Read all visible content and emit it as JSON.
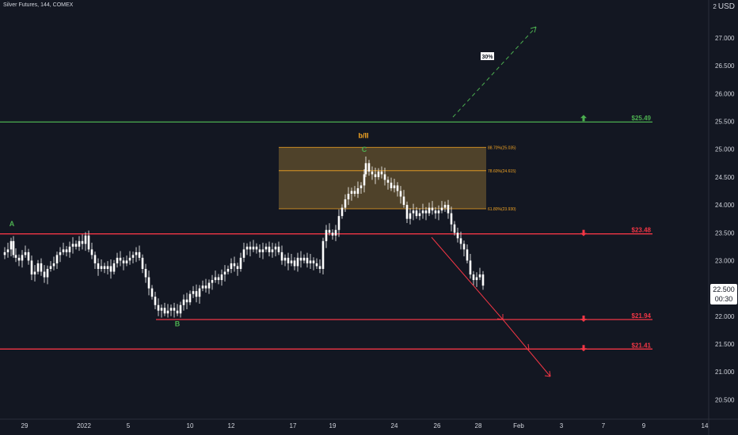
{
  "chart_title": "Silver Futures, 144, COMEX",
  "currency": "USD",
  "currency_count": "2",
  "last_price": "22.500",
  "countdown": "00:30",
  "colors": {
    "background": "#131722",
    "candle": "#ffffff",
    "green_level": "#4caf50",
    "red_level": "#f23645",
    "fib_zone": "#5b4a2c",
    "fib_line": "#f5a623",
    "wave_green": "#4caf50",
    "wave_orange": "#f5a623"
  },
  "chart_data": {
    "type": "candlestick",
    "title": "Silver Futures, 144, COMEX",
    "ylim": [
      20.3,
      28.0
    ],
    "y_ticks": [
      "27.000",
      "26.500",
      "26.000",
      "25.500",
      "25.000",
      "24.500",
      "24.000",
      "23.500",
      "23.000",
      "22.500",
      "22.000",
      "21.500",
      "21.000",
      "20.500"
    ],
    "y_tick_values": [
      27.0,
      26.5,
      26.0,
      25.5,
      25.0,
      24.5,
      24.0,
      23.5,
      23.0,
      22.5,
      22.0,
      21.5,
      21.0,
      20.5
    ],
    "x_ticks": [
      "29",
      "2022",
      "5",
      "10",
      "12",
      "17",
      "19",
      "24",
      "26",
      "28",
      "Feb",
      "3",
      "7",
      "9",
      "14"
    ],
    "close_path": [
      [
        0,
        23.1
      ],
      [
        6,
        23.15
      ],
      [
        10,
        23.2
      ],
      [
        14,
        23.35
      ],
      [
        17,
        23.1
      ],
      [
        20,
        23.05
      ],
      [
        24,
        23.0
      ],
      [
        28,
        23.1
      ],
      [
        32,
        23.15
      ],
      [
        36,
        23.0
      ],
      [
        40,
        22.75
      ],
      [
        44,
        22.8
      ],
      [
        48,
        22.95
      ],
      [
        52,
        22.8
      ],
      [
        56,
        22.7
      ],
      [
        60,
        22.85
      ],
      [
        64,
        22.9
      ],
      [
        68,
        22.95
      ],
      [
        72,
        23.1
      ],
      [
        76,
        23.15
      ],
      [
        80,
        23.2
      ],
      [
        84,
        23.15
      ],
      [
        88,
        23.25
      ],
      [
        92,
        23.3
      ],
      [
        96,
        23.25
      ],
      [
        100,
        23.35
      ],
      [
        104,
        23.3
      ],
      [
        108,
        23.45
      ],
      [
        112,
        23.2
      ],
      [
        116,
        23.1
      ],
      [
        120,
        22.95
      ],
      [
        124,
        22.85
      ],
      [
        128,
        22.9
      ],
      [
        132,
        22.85
      ],
      [
        136,
        22.9
      ],
      [
        140,
        22.8
      ],
      [
        144,
        22.95
      ],
      [
        148,
        23.05
      ],
      [
        152,
        23.0
      ],
      [
        156,
        22.95
      ],
      [
        160,
        23.0
      ],
      [
        164,
        23.05
      ],
      [
        168,
        23.1
      ],
      [
        172,
        23.15
      ],
      [
        176,
        23.05
      ],
      [
        180,
        22.85
      ],
      [
        184,
        22.7
      ],
      [
        188,
        22.5
      ],
      [
        192,
        22.35
      ],
      [
        196,
        22.2
      ],
      [
        200,
        22.1
      ],
      [
        204,
        22.15
      ],
      [
        208,
        22.05
      ],
      [
        212,
        22.1
      ],
      [
        216,
        22.15
      ],
      [
        220,
        22.1
      ],
      [
        224,
        22.05
      ],
      [
        228,
        22.2
      ],
      [
        232,
        22.3
      ],
      [
        236,
        22.25
      ],
      [
        240,
        22.4
      ],
      [
        244,
        22.45
      ],
      [
        248,
        22.35
      ],
      [
        252,
        22.5
      ],
      [
        256,
        22.55
      ],
      [
        260,
        22.5
      ],
      [
        264,
        22.6
      ],
      [
        268,
        22.65
      ],
      [
        272,
        22.7
      ],
      [
        276,
        22.65
      ],
      [
        280,
        22.75
      ],
      [
        284,
        22.8
      ],
      [
        288,
        22.85
      ],
      [
        292,
        22.95
      ],
      [
        296,
        22.9
      ],
      [
        300,
        22.85
      ],
      [
        304,
        23.05
      ],
      [
        308,
        23.2
      ],
      [
        312,
        23.25
      ],
      [
        316,
        23.2
      ],
      [
        320,
        23.25
      ],
      [
        324,
        23.2
      ],
      [
        328,
        23.15
      ],
      [
        332,
        23.2
      ],
      [
        336,
        23.25
      ],
      [
        340,
        23.15
      ],
      [
        344,
        23.2
      ],
      [
        348,
        23.25
      ],
      [
        352,
        23.15
      ],
      [
        356,
        23.0
      ],
      [
        360,
        23.05
      ],
      [
        364,
        22.95
      ],
      [
        368,
        23.0
      ],
      [
        372,
        22.9
      ],
      [
        376,
        23.05
      ],
      [
        380,
        23.0
      ],
      [
        384,
        23.05
      ],
      [
        388,
        22.95
      ],
      [
        392,
        23.0
      ],
      [
        396,
        22.95
      ],
      [
        400,
        22.9
      ],
      [
        404,
        22.85
      ],
      [
        408,
        23.35
      ],
      [
        412,
        23.55
      ],
      [
        416,
        23.5
      ],
      [
        420,
        23.45
      ],
      [
        424,
        23.55
      ],
      [
        428,
        23.8
      ],
      [
        432,
        23.95
      ],
      [
        436,
        24.1
      ],
      [
        440,
        24.2
      ],
      [
        444,
        24.25
      ],
      [
        448,
        24.2
      ],
      [
        452,
        24.3
      ],
      [
        456,
        24.35
      ],
      [
        460,
        24.55
      ],
      [
        462,
        24.75
      ],
      [
        466,
        24.6
      ],
      [
        470,
        24.55
      ],
      [
        474,
        24.5
      ],
      [
        478,
        24.6
      ],
      [
        482,
        24.55
      ],
      [
        486,
        24.45
      ],
      [
        490,
        24.4
      ],
      [
        494,
        24.3
      ],
      [
        498,
        24.35
      ],
      [
        502,
        24.25
      ],
      [
        506,
        24.15
      ],
      [
        510,
        24.0
      ],
      [
        514,
        23.75
      ],
      [
        518,
        23.85
      ],
      [
        522,
        23.9
      ],
      [
        526,
        23.8
      ],
      [
        530,
        23.85
      ],
      [
        534,
        23.9
      ],
      [
        538,
        23.85
      ],
      [
        542,
        23.95
      ],
      [
        546,
        23.9
      ],
      [
        550,
        23.85
      ],
      [
        554,
        23.9
      ],
      [
        558,
        23.95
      ],
      [
        562,
        24.0
      ],
      [
        566,
        23.85
      ],
      [
        570,
        23.65
      ],
      [
        574,
        23.5
      ],
      [
        578,
        23.4
      ],
      [
        582,
        23.3
      ],
      [
        586,
        23.2
      ],
      [
        590,
        23.0
      ],
      [
        594,
        22.75
      ],
      [
        598,
        22.65
      ],
      [
        602,
        22.7
      ],
      [
        606,
        22.75
      ],
      [
        610,
        22.55
      ]
    ],
    "levels": [
      {
        "price": 25.49,
        "label": "$25.49",
        "color": "green"
      },
      {
        "price": 23.48,
        "label": "$23.48",
        "color": "red"
      },
      {
        "price": 21.94,
        "label": "$21.94",
        "color": "red"
      },
      {
        "price": 21.41,
        "label": "$21.41",
        "color": "red"
      }
    ],
    "fib_zone": {
      "top": 25.035,
      "bottom": 23.93,
      "lines": [
        {
          "price": 25.035,
          "label": "88.70%(25.035)"
        },
        {
          "price": 24.615,
          "label": "78.60%(24.615)"
        },
        {
          "price": 23.93,
          "label": "61.80%(23.930)"
        }
      ]
    },
    "wave_labels": [
      {
        "text": "A",
        "price": 23.62,
        "color": "green"
      },
      {
        "text": "B",
        "price": 21.82,
        "color": "green"
      },
      {
        "text": "C",
        "price": 24.95,
        "color": "green"
      },
      {
        "text": "b/II",
        "price": 25.2,
        "color": "orange"
      }
    ],
    "projection_label": "30%"
  }
}
